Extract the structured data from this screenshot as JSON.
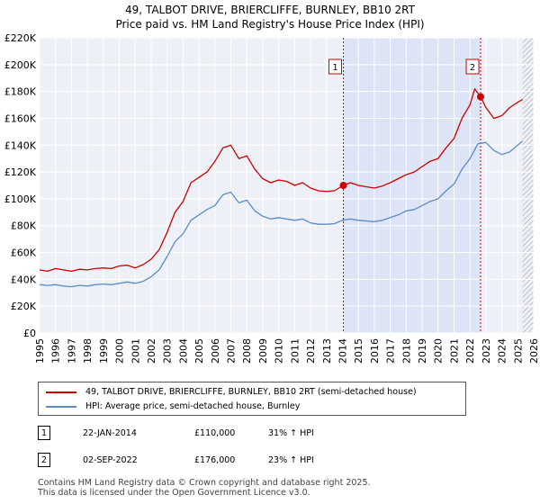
{
  "chart_data": {
    "type": "line",
    "title": "49, TALBOT DRIVE, BRIERCLIFFE, BURNLEY, BB10 2RT",
    "subtitle": "Price paid vs. HM Land Registry's House Price Index (HPI)",
    "xlim": [
      1995,
      2026
    ],
    "ylim": [
      0,
      220000
    ],
    "x_ticks": [
      1995,
      1996,
      1997,
      1998,
      1999,
      2000,
      2001,
      2002,
      2003,
      2004,
      2005,
      2006,
      2007,
      2008,
      2009,
      2010,
      2011,
      2012,
      2013,
      2014,
      2015,
      2016,
      2017,
      2018,
      2019,
      2020,
      2021,
      2022,
      2023,
      2024,
      2025,
      2026
    ],
    "y_ticks": [
      0,
      20000,
      40000,
      60000,
      80000,
      100000,
      120000,
      140000,
      160000,
      180000,
      200000,
      220000
    ],
    "y_tick_labels": [
      "£0",
      "£20K",
      "£40K",
      "£60K",
      "£80K",
      "£100K",
      "£120K",
      "£140K",
      "£160K",
      "£180K",
      "£200K",
      "£220K"
    ],
    "grid": true,
    "series": [
      {
        "name": "49, TALBOT DRIVE, BRIERCLIFFE, BURNLEY, BB10 2RT (semi-detached house)",
        "color": "#cc0000",
        "x": [
          1995,
          1995.5,
          1996,
          1996.5,
          1997,
          1997.5,
          1998,
          1998.5,
          1999,
          1999.5,
          2000,
          2000.5,
          2001,
          2001.5,
          2002,
          2002.5,
          2003,
          2003.5,
          2004,
          2004.5,
          2005,
          2005.5,
          2006,
          2006.5,
          2007,
          2007.5,
          2008,
          2008.5,
          2009,
          2009.5,
          2010,
          2010.5,
          2011,
          2011.5,
          2012,
          2012.5,
          2013,
          2013.5,
          2014.06,
          2014.5,
          2015,
          2015.5,
          2016,
          2016.5,
          2017,
          2017.5,
          2018,
          2018.5,
          2019,
          2019.5,
          2020,
          2020.5,
          2021,
          2021.5,
          2022,
          2022.3,
          2022.67,
          2023,
          2023.5,
          2024,
          2024.5,
          2025,
          2025.3
        ],
        "y": [
          47000,
          46000,
          48000,
          47000,
          46000,
          47500,
          47000,
          48000,
          48500,
          48000,
          50000,
          50500,
          48500,
          51000,
          55000,
          62000,
          75000,
          90000,
          98000,
          112000,
          116000,
          120000,
          128000,
          138000,
          140000,
          130000,
          132000,
          122000,
          115000,
          112000,
          114000,
          113000,
          110000,
          112000,
          108000,
          106000,
          105500,
          106000,
          110000,
          112000,
          110000,
          109000,
          108000,
          109500,
          112000,
          115000,
          118000,
          120000,
          124000,
          128000,
          130000,
          138000,
          145000,
          160000,
          170000,
          182000,
          176000,
          168000,
          160000,
          162000,
          168000,
          172000,
          174000
        ]
      },
      {
        "name": "HPI: Average price, semi-detached house, Burnley",
        "color": "#5b8cc8",
        "x": [
          1995,
          1995.5,
          1996,
          1996.5,
          1997,
          1997.5,
          1998,
          1998.5,
          1999,
          1999.5,
          2000,
          2000.5,
          2001,
          2001.5,
          2002,
          2002.5,
          2003,
          2003.5,
          2004,
          2004.5,
          2005,
          2005.5,
          2006,
          2006.5,
          2007,
          2007.5,
          2008,
          2008.5,
          2009,
          2009.5,
          2010,
          2010.5,
          2011,
          2011.5,
          2012,
          2012.5,
          2013,
          2013.5,
          2014,
          2014.5,
          2015,
          2015.5,
          2016,
          2016.5,
          2017,
          2017.5,
          2018,
          2018.5,
          2019,
          2019.5,
          2020,
          2020.5,
          2021,
          2021.5,
          2022,
          2022.5,
          2023,
          2023.5,
          2024,
          2024.5,
          2025,
          2025.3
        ],
        "y": [
          36000,
          35500,
          36000,
          35000,
          34500,
          35500,
          35000,
          36000,
          36500,
          36000,
          37000,
          38000,
          37000,
          38500,
          42000,
          47000,
          57000,
          68000,
          74000,
          84000,
          88000,
          92000,
          95000,
          103000,
          105000,
          97000,
          99000,
          91000,
          87000,
          85000,
          86000,
          85000,
          84000,
          85000,
          82000,
          81000,
          81000,
          81500,
          84000,
          85000,
          84000,
          83500,
          83000,
          84000,
          86000,
          88000,
          91000,
          92000,
          95000,
          98000,
          100000,
          106000,
          111000,
          122000,
          130000,
          141000,
          142000,
          136000,
          133000,
          135000,
          140000,
          143000
        ]
      }
    ],
    "sales": [
      {
        "label": "1",
        "x": 2014.06,
        "y": 110000
      },
      {
        "label": "2",
        "x": 2022.67,
        "y": 176000
      }
    ],
    "shaded_region": {
      "from": 2014.06,
      "to": 2022.67
    },
    "hatched_from": 2025.3
  },
  "legend": {
    "property_label": "49, TALBOT DRIVE, BRIERCLIFFE, BURNLEY, BB10 2RT (semi-detached house)",
    "hpi_label": "HPI: Average price, semi-detached house, Burnley"
  },
  "sales_table": [
    {
      "num": "1",
      "date": "22-JAN-2014",
      "price": "£110,000",
      "change": "31% ↑ HPI"
    },
    {
      "num": "2",
      "date": "02-SEP-2022",
      "price": "£176,000",
      "change": "23% ↑ HPI"
    }
  ],
  "footer": {
    "line1": "Contains HM Land Registry data © Crown copyright and database right 2025.",
    "line2": "This data is licensed under the Open Government Licence v3.0."
  }
}
